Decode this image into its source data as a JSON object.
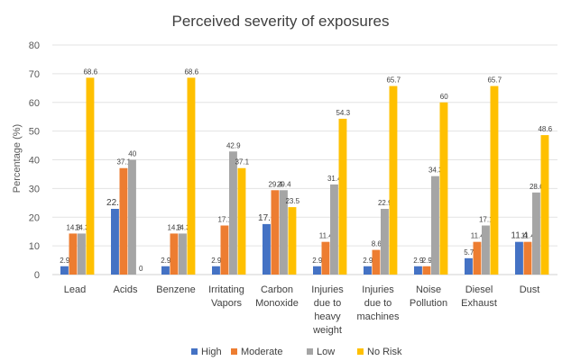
{
  "chart_data": {
    "type": "bar",
    "title": "Perceived severity of exposures",
    "xlabel": "",
    "ylabel": "Percentage (%)",
    "ylim": [
      0,
      80
    ],
    "yticks": [
      0,
      10,
      20,
      30,
      40,
      50,
      60,
      70,
      80
    ],
    "grid": true,
    "legend_position": "bottom",
    "categories": [
      [
        "Lead"
      ],
      [
        "Acids"
      ],
      [
        "Benzene"
      ],
      [
        "Irritating",
        "Vapors"
      ],
      [
        "Carbon",
        "Monoxide"
      ],
      [
        "Injuries",
        "due to",
        "heavy",
        "weight"
      ],
      [
        "Injuries",
        "due to",
        "machines"
      ],
      [
        "Noise",
        "Pollution"
      ],
      [
        "Diesel",
        "Exhaust"
      ],
      [
        "Dust"
      ]
    ],
    "series": [
      {
        "name": "High",
        "color": "#4472C4",
        "values": [
          2.9,
          22.9,
          2.9,
          2.9,
          17.6,
          2.9,
          2.9,
          2.9,
          5.7,
          11.4
        ],
        "labels": [
          "2.9",
          "22.9",
          "2.9",
          "2.9",
          "17.6",
          "2.9",
          "2.9",
          "2.9",
          "5.7",
          "11.4"
        ]
      },
      {
        "name": "Moderate",
        "color": "#ED7D31",
        "values": [
          14.3,
          37.1,
          14.3,
          17.1,
          29.4,
          11.4,
          8.6,
          2.9,
          11.4,
          11.4
        ],
        "labels": [
          "14.3",
          "37.1",
          "14.3",
          "17.1",
          "29.4",
          "11.4",
          "8.6",
          "2.9",
          "11.4",
          "11.4"
        ]
      },
      {
        "name": "Low",
        "color": "#A5A5A5",
        "values": [
          14.3,
          40,
          14.3,
          42.9,
          29.4,
          31.4,
          22.9,
          34.3,
          17.1,
          28.6
        ],
        "labels": [
          "14.3",
          "40",
          "14.3",
          "42.9",
          "29.4",
          "31.4",
          "22.9",
          "34.3",
          "17.1",
          "28.6"
        ]
      },
      {
        "name": "No Risk",
        "color": "#FFC000",
        "values": [
          68.6,
          0,
          68.6,
          37.1,
          23.5,
          54.3,
          65.7,
          60,
          65.7,
          48.6
        ],
        "labels": [
          "68.6",
          "0",
          "68.6",
          "37.1",
          "23.5",
          "54.3",
          "65.7",
          "60",
          "65.7",
          "48.6"
        ]
      }
    ]
  }
}
